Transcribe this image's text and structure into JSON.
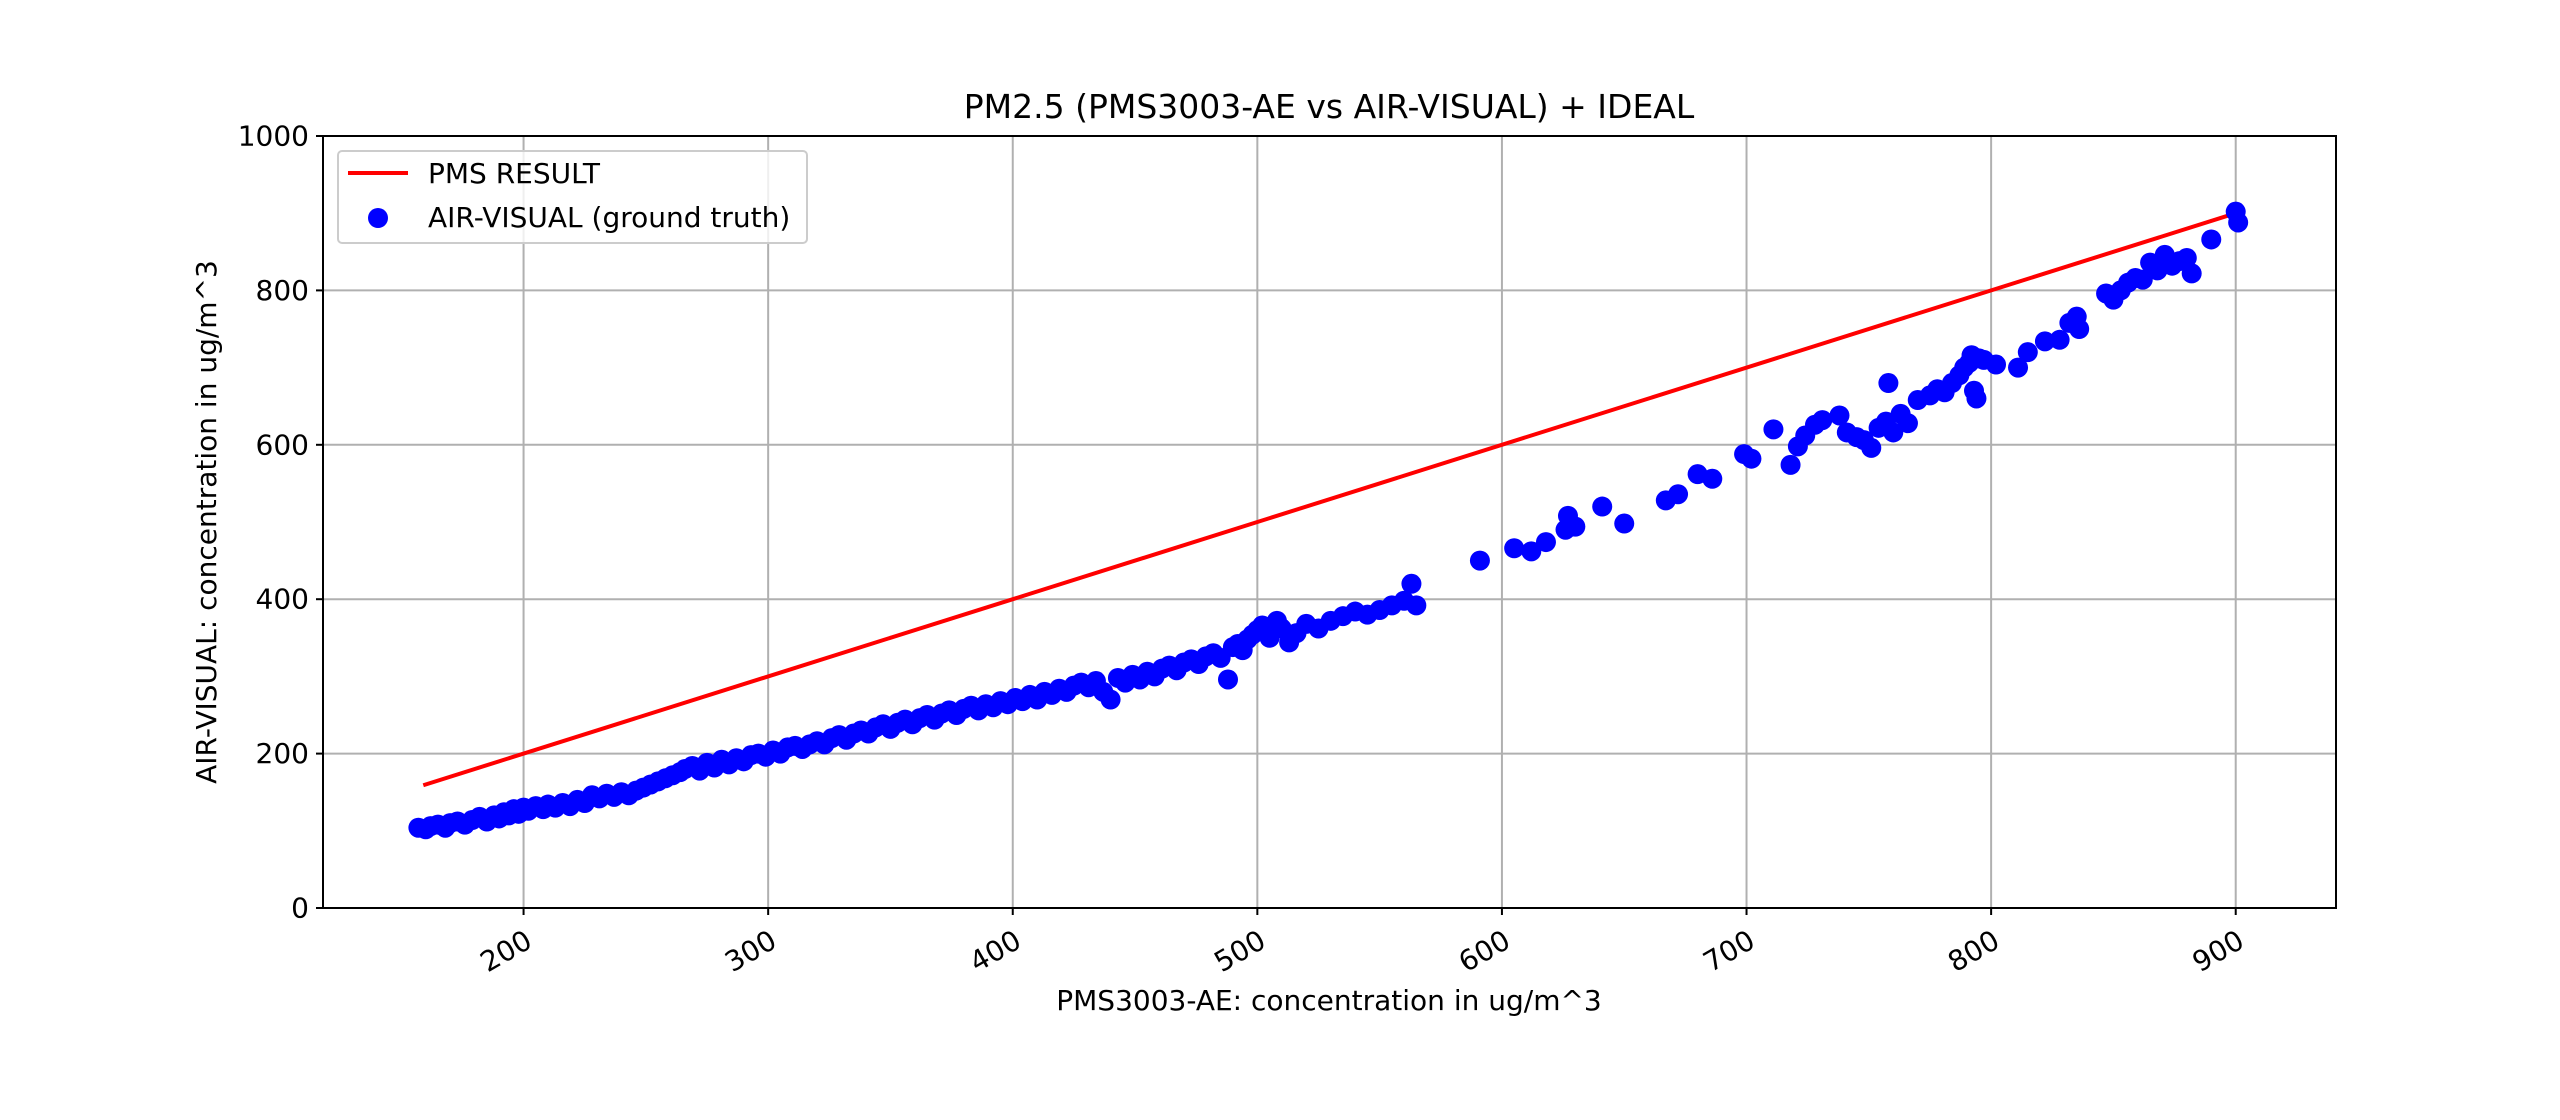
{
  "chart_data": {
    "type": "scatter",
    "title": "PM2.5 (PMS3003-AE vs AIR-VISUAL) + IDEAL",
    "xlabel": "PMS3003-AE: concentration in ug/m^3",
    "ylabel": "AIR-VISUAL: concentration in ug/m^3",
    "xlim": [
      118,
      941
    ],
    "ylim": [
      0,
      1000
    ],
    "xticks": [
      200,
      300,
      400,
      500,
      600,
      700,
      800,
      900
    ],
    "yticks": [
      0,
      200,
      400,
      600,
      800,
      1000
    ],
    "grid": true,
    "legend_position": "upper-left",
    "colors": {
      "line": "#ff0000",
      "points": "#0000ff",
      "grid": "#b0b0b0"
    },
    "series": [
      {
        "name": "PMS RESULT",
        "kind": "line",
        "x": [
          159,
          900
        ],
        "y": [
          159,
          900
        ]
      },
      {
        "name": "AIR-VISUAL (ground truth)",
        "kind": "scatter",
        "points": [
          [
            157,
            104
          ],
          [
            160,
            102
          ],
          [
            162,
            106
          ],
          [
            165,
            108
          ],
          [
            168,
            104
          ],
          [
            170,
            110
          ],
          [
            173,
            112
          ],
          [
            176,
            108
          ],
          [
            179,
            114
          ],
          [
            182,
            118
          ],
          [
            185,
            112
          ],
          [
            188,
            120
          ],
          [
            190,
            116
          ],
          [
            192,
            124
          ],
          [
            194,
            120
          ],
          [
            196,
            128
          ],
          [
            198,
            122
          ],
          [
            200,
            130
          ],
          [
            202,
            126
          ],
          [
            205,
            132
          ],
          [
            208,
            128
          ],
          [
            210,
            134
          ],
          [
            213,
            130
          ],
          [
            216,
            136
          ],
          [
            219,
            132
          ],
          [
            222,
            140
          ],
          [
            225,
            136
          ],
          [
            228,
            146
          ],
          [
            231,
            142
          ],
          [
            234,
            148
          ],
          [
            237,
            144
          ],
          [
            240,
            150
          ],
          [
            243,
            146
          ],
          [
            246,
            152
          ],
          [
            249,
            156
          ],
          [
            252,
            160
          ],
          [
            255,
            164
          ],
          [
            258,
            168
          ],
          [
            261,
            172
          ],
          [
            264,
            176
          ],
          [
            266,
            180
          ],
          [
            269,
            184
          ],
          [
            272,
            178
          ],
          [
            275,
            188
          ],
          [
            278,
            182
          ],
          [
            281,
            192
          ],
          [
            284,
            186
          ],
          [
            287,
            194
          ],
          [
            290,
            190
          ],
          [
            293,
            198
          ],
          [
            296,
            200
          ],
          [
            299,
            196
          ],
          [
            302,
            204
          ],
          [
            305,
            200
          ],
          [
            308,
            208
          ],
          [
            311,
            210
          ],
          [
            314,
            206
          ],
          [
            317,
            212
          ],
          [
            320,
            216
          ],
          [
            323,
            212
          ],
          [
            326,
            220
          ],
          [
            329,
            224
          ],
          [
            332,
            218
          ],
          [
            335,
            226
          ],
          [
            338,
            230
          ],
          [
            341,
            226
          ],
          [
            344,
            234
          ],
          [
            347,
            238
          ],
          [
            350,
            232
          ],
          [
            353,
            240
          ],
          [
            356,
            244
          ],
          [
            359,
            238
          ],
          [
            362,
            246
          ],
          [
            365,
            250
          ],
          [
            368,
            244
          ],
          [
            371,
            252
          ],
          [
            374,
            256
          ],
          [
            377,
            250
          ],
          [
            380,
            258
          ],
          [
            383,
            262
          ],
          [
            386,
            256
          ],
          [
            389,
            264
          ],
          [
            392,
            260
          ],
          [
            395,
            268
          ],
          [
            398,
            264
          ],
          [
            401,
            272
          ],
          [
            404,
            268
          ],
          [
            407,
            276
          ],
          [
            410,
            270
          ],
          [
            413,
            280
          ],
          [
            416,
            276
          ],
          [
            419,
            284
          ],
          [
            422,
            280
          ],
          [
            425,
            288
          ],
          [
            428,
            292
          ],
          [
            431,
            286
          ],
          [
            434,
            294
          ],
          [
            437,
            280
          ],
          [
            440,
            270
          ],
          [
            443,
            298
          ],
          [
            446,
            292
          ],
          [
            449,
            302
          ],
          [
            452,
            296
          ],
          [
            455,
            306
          ],
          [
            458,
            300
          ],
          [
            461,
            310
          ],
          [
            464,
            314
          ],
          [
            467,
            308
          ],
          [
            470,
            318
          ],
          [
            473,
            322
          ],
          [
            476,
            316
          ],
          [
            479,
            326
          ],
          [
            482,
            330
          ],
          [
            485,
            324
          ],
          [
            488,
            296
          ],
          [
            490,
            338
          ],
          [
            492,
            342
          ],
          [
            494,
            334
          ],
          [
            496,
            348
          ],
          [
            498,
            354
          ],
          [
            500,
            360
          ],
          [
            502,
            366
          ],
          [
            505,
            350
          ],
          [
            508,
            372
          ],
          [
            510,
            362
          ],
          [
            513,
            344
          ],
          [
            516,
            356
          ],
          [
            520,
            368
          ],
          [
            525,
            362
          ],
          [
            530,
            372
          ],
          [
            535,
            378
          ],
          [
            540,
            384
          ],
          [
            545,
            380
          ],
          [
            550,
            386
          ],
          [
            555,
            392
          ],
          [
            560,
            398
          ],
          [
            563,
            420
          ],
          [
            565,
            392
          ],
          [
            591,
            450
          ],
          [
            605,
            466
          ],
          [
            612,
            462
          ],
          [
            618,
            474
          ],
          [
            626,
            490
          ],
          [
            630,
            494
          ],
          [
            627,
            508
          ],
          [
            641,
            520
          ],
          [
            650,
            498
          ],
          [
            667,
            528
          ],
          [
            672,
            536
          ],
          [
            680,
            562
          ],
          [
            686,
            556
          ],
          [
            699,
            588
          ],
          [
            702,
            582
          ],
          [
            711,
            620
          ],
          [
            718,
            574
          ],
          [
            721,
            598
          ],
          [
            724,
            612
          ],
          [
            728,
            626
          ],
          [
            731,
            632
          ],
          [
            738,
            638
          ],
          [
            741,
            616
          ],
          [
            745,
            610
          ],
          [
            748,
            606
          ],
          [
            751,
            596
          ],
          [
            754,
            622
          ],
          [
            757,
            630
          ],
          [
            758,
            680
          ],
          [
            760,
            616
          ],
          [
            763,
            640
          ],
          [
            766,
            628
          ],
          [
            770,
            658
          ],
          [
            775,
            664
          ],
          [
            778,
            672
          ],
          [
            781,
            668
          ],
          [
            784,
            680
          ],
          [
            787,
            690
          ],
          [
            789,
            700
          ],
          [
            791,
            706
          ],
          [
            792,
            716
          ],
          [
            793,
            670
          ],
          [
            794,
            660
          ],
          [
            795,
            712
          ],
          [
            797,
            710
          ],
          [
            802,
            704
          ],
          [
            811,
            700
          ],
          [
            815,
            720
          ],
          [
            822,
            734
          ],
          [
            828,
            736
          ],
          [
            832,
            758
          ],
          [
            835,
            766
          ],
          [
            836,
            750
          ],
          [
            847,
            796
          ],
          [
            850,
            788
          ],
          [
            853,
            800
          ],
          [
            856,
            810
          ],
          [
            859,
            816
          ],
          [
            862,
            814
          ],
          [
            865,
            836
          ],
          [
            868,
            826
          ],
          [
            871,
            846
          ],
          [
            874,
            832
          ],
          [
            877,
            838
          ],
          [
            880,
            842
          ],
          [
            882,
            822
          ],
          [
            890,
            866
          ],
          [
            900,
            902
          ],
          [
            901,
            888
          ]
        ]
      }
    ]
  }
}
